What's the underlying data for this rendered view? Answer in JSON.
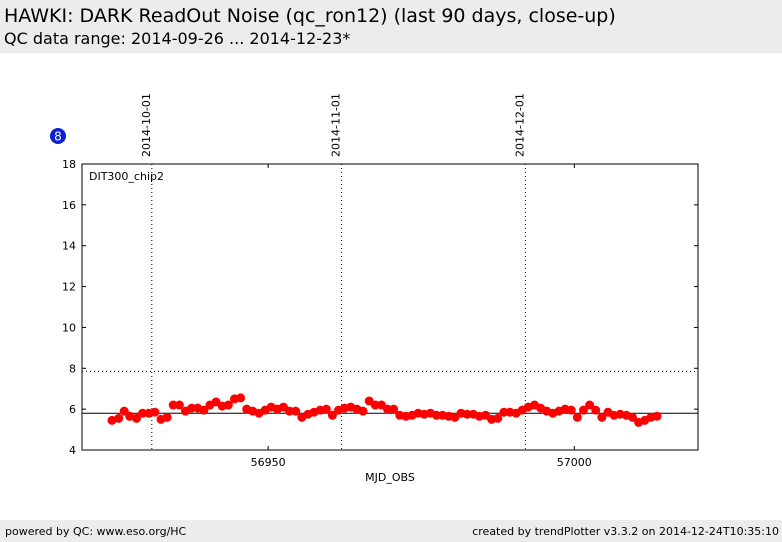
{
  "header": {
    "title": "HAWKI: DARK ReadOut Noise (qc_ron12) (last 90 days, close-up)",
    "subtitle": "QC data range: 2014-09-26 ... 2014-12-23*"
  },
  "footer": {
    "left": "powered by QC: www.eso.org/HC",
    "right": "created by trendPlotter v3.3.2 on 2014-12-24T10:35:10"
  },
  "badge": {
    "label": "8",
    "color": "#0a1fd6"
  },
  "chart_data": {
    "type": "scatter",
    "panel_label": "DIT300_chip2",
    "xlabel": "MJD_OBS",
    "ylabel": "",
    "xlim": [
      56919.6,
      57020.2
    ],
    "ylim": [
      4,
      18
    ],
    "x_ticks": [
      56950,
      57000
    ],
    "y_ticks": [
      4,
      6,
      8,
      10,
      12,
      14,
      16,
      18
    ],
    "reference_lines": {
      "solid": 5.8,
      "dotted": 7.85
    },
    "date_markers": [
      {
        "label": "2014-10-01",
        "mjd": 56931
      },
      {
        "label": "2014-11-01",
        "mjd": 56962
      },
      {
        "label": "2014-12-01",
        "mjd": 56992
      }
    ],
    "point_color": "#ff0000",
    "x": [
      56924.5,
      56925.6,
      56926.5,
      56927.4,
      56928.5,
      56929.5,
      56930.5,
      56931.5,
      56932.5,
      56933.5,
      56934.5,
      56935.5,
      56936.5,
      56937.5,
      56938.5,
      56939.5,
      56940.5,
      56941.5,
      56942.5,
      56943.5,
      56944.5,
      56945.5,
      56946.5,
      56947.5,
      56948.5,
      56949.5,
      56950.5,
      56951.5,
      56952.5,
      56953.5,
      56954.5,
      56955.5,
      56956.5,
      56957.5,
      56958.5,
      56959.5,
      56960.5,
      56961.5,
      56962.5,
      56963.5,
      56964.5,
      56965.5,
      56966.5,
      56967.5,
      56968.5,
      56969.5,
      56970.5,
      56971.5,
      56972.5,
      56973.5,
      56974.5,
      56975.5,
      56976.5,
      56977.5,
      56978.5,
      56979.5,
      56980.5,
      56981.5,
      56982.5,
      56983.5,
      56984.5,
      56985.5,
      56986.5,
      56987.5,
      56988.5,
      56989.5,
      56990.5,
      56991.5,
      56992.5,
      56993.5,
      56994.5,
      56995.5,
      56996.5,
      56997.5,
      56998.5,
      56999.5,
      57000.5,
      57001.5,
      57002.5,
      57003.5,
      57004.5,
      57005.5,
      57006.5,
      57007.5,
      57008.5,
      57009.5,
      57010.5,
      57011.5,
      57012.5,
      57013.5
    ],
    "y": [
      5.45,
      5.55,
      5.9,
      5.65,
      5.55,
      5.8,
      5.8,
      5.85,
      5.5,
      5.6,
      6.2,
      6.2,
      5.9,
      6.05,
      6.05,
      5.95,
      6.2,
      6.35,
      6.15,
      6.2,
      6.5,
      6.55,
      6.0,
      5.9,
      5.8,
      5.95,
      6.1,
      6.0,
      6.1,
      5.9,
      5.9,
      5.6,
      5.75,
      5.85,
      5.95,
      6.0,
      5.7,
      5.95,
      6.05,
      6.1,
      6.0,
      5.9,
      6.4,
      6.2,
      6.2,
      6.0,
      6.0,
      5.7,
      5.65,
      5.7,
      5.8,
      5.75,
      5.8,
      5.7,
      5.7,
      5.65,
      5.6,
      5.8,
      5.75,
      5.75,
      5.65,
      5.7,
      5.5,
      5.55,
      5.85,
      5.85,
      5.8,
      5.95,
      6.1,
      6.2,
      6.05,
      5.9,
      5.8,
      5.9,
      6.0,
      5.95,
      5.6,
      5.95,
      6.2,
      5.95,
      5.6,
      5.85,
      5.7,
      5.75,
      5.7,
      5.6,
      5.35,
      5.45,
      5.6,
      5.65
    ]
  }
}
